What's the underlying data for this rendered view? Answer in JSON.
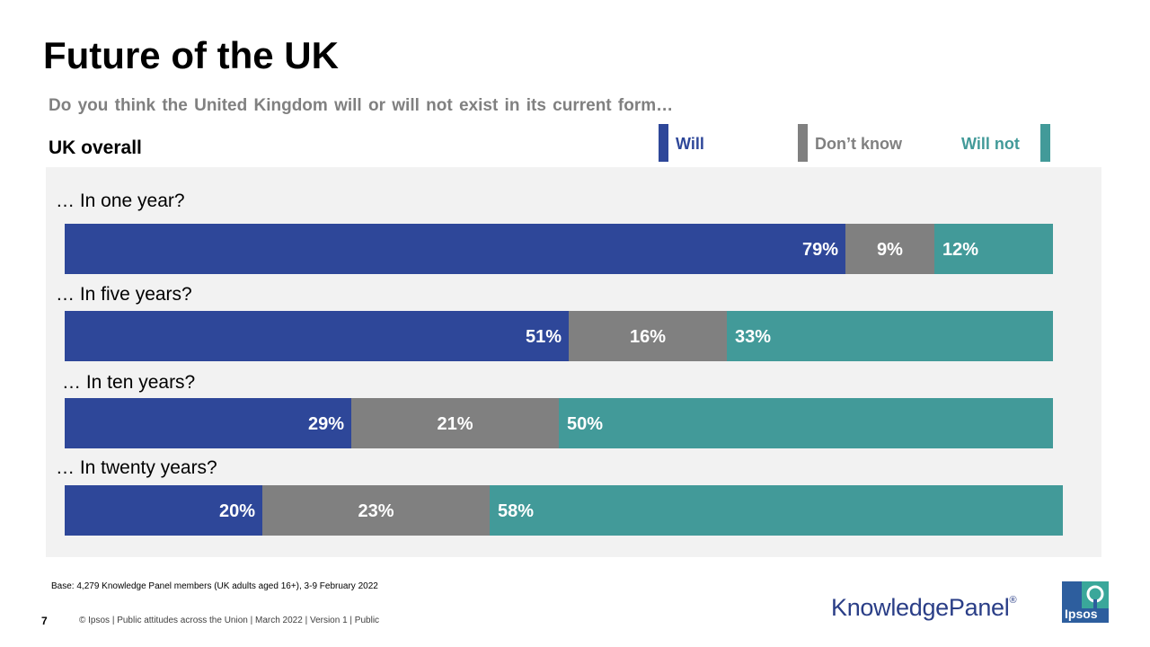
{
  "slide": {
    "title": "Future of the UK",
    "question": "Do you think the United Kingdom will or will not exist in its current form…",
    "subgroup": "UK overall",
    "base_note": "Base: 4,279 Knowledge Panel members (UK adults aged 16+), 3-9 February 2022",
    "page_number": "7",
    "footer": "© Ipsos | Public attitudes across the Union | March 2022 | Version 1 | Public",
    "kp_logo_text": "KnowledgePanel",
    "kp_logo_mark": "®",
    "ipsos_logo_text": "Ipsos"
  },
  "legend": [
    {
      "label": "Will",
      "color": "#2e4799",
      "text_color": "#2e4799"
    },
    {
      "label": "Don’t know",
      "color": "#808080",
      "text_color": "#808080"
    },
    {
      "label": "Will not",
      "color": "#429a99",
      "text_color": "#429a99"
    }
  ],
  "chart_data": {
    "type": "bar",
    "orientation": "horizontal",
    "stacked": true,
    "percent": true,
    "categories": [
      "… In one year?",
      "… In five years?",
      "… In ten years?",
      "… In twenty years?"
    ],
    "series": [
      {
        "name": "Will",
        "values": [
          79,
          51,
          29,
          20
        ],
        "color": "#2e4799"
      },
      {
        "name": "Don’t know",
        "values": [
          9,
          16,
          21,
          23
        ],
        "color": "#808080"
      },
      {
        "name": "Will not",
        "values": [
          12,
          33,
          50,
          58
        ],
        "color": "#429a99"
      }
    ],
    "data_labels": [
      [
        "79%",
        "51%",
        "29%",
        "20%"
      ],
      [
        "9%",
        "16%",
        "21%",
        "23%"
      ],
      [
        "12%",
        "33%",
        "50%",
        "58%"
      ]
    ],
    "xlim": [
      0,
      100
    ],
    "grid": false,
    "legend_position": "top-right"
  }
}
